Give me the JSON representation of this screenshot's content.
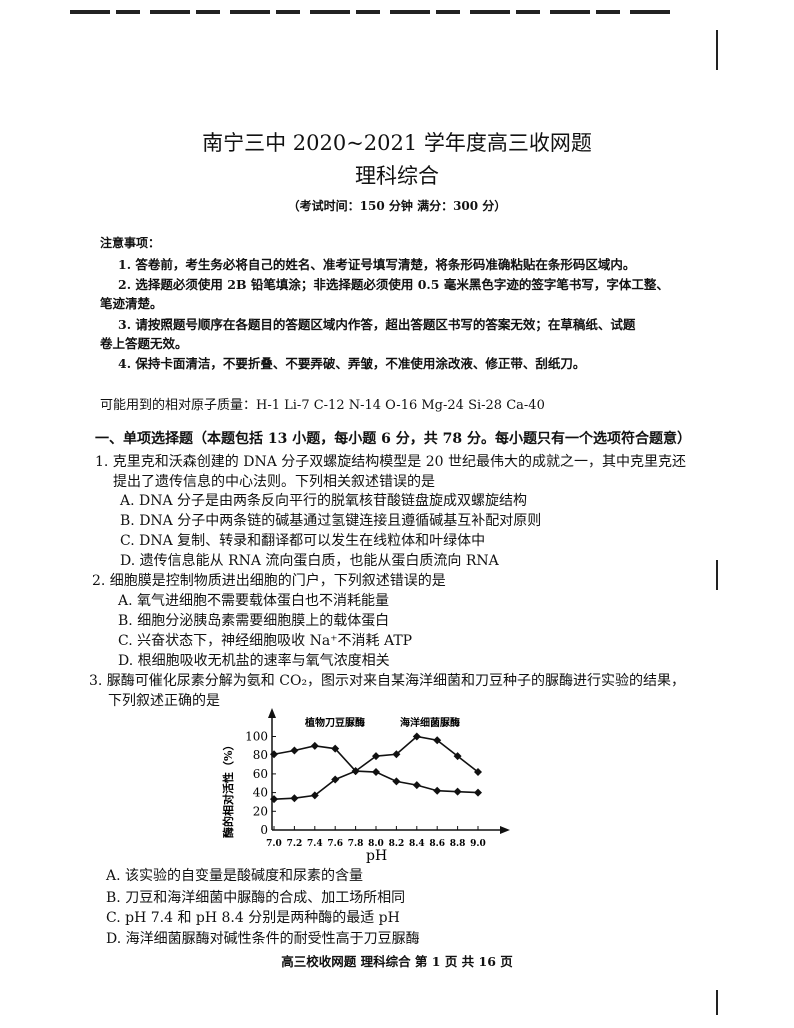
{
  "header": {
    "title": "南宁三中 2020~2021 学年度高三收网题",
    "subject": "理科综合",
    "exam_info": "（考试时间：150 分钟   满分：300 分）"
  },
  "notes": {
    "heading": "注意事项：",
    "items": [
      "1. 答卷前，考生务必将自己的姓名、准考证号填写清楚，将条形码准确粘贴在条形码区域内。",
      "2. 选择题必须使用 2B 铅笔填涂；非选择题必须使用 0.5 毫米黑色字迹的签字笔书写，字体工整、",
      "笔迹清楚。",
      "3. 请按照题号顺序在各题目的答题区域内作答，超出答题区书写的答案无效；在草稿纸、试题",
      "卷上答题无效。",
      "4. 保持卡面清洁，不要折叠、不要弄破、弄皱，不准使用涂改液、修正带、刮纸刀。"
    ]
  },
  "atomic_masses": "可能用到的相对原子质量：H-1   Li-7   C-12   N-14   O-16   Mg-24   Si-28   Ca-40",
  "section": "一、单项选择题（本题包括 13 小题，每小题 6 分，共 78 分。每小题只有一个选项符合题意）",
  "questions": [
    {
      "stem": [
        "1. 克里克和沃森创建的 DNA 分子双螺旋结构模型是 20 世纪最伟大的成就之一，其中克里克还",
        "提出了遗传信息的中心法则。下列相关叙述错误的是"
      ],
      "options": [
        "A. DNA 分子是由两条反向平行的脱氧核苷酸链盘旋成双螺旋结构",
        "B. DNA 分子中两条链的碱基通过氢键连接且遵循碱基互补配对原则",
        "C. DNA 复制、转录和翻译都可以发生在线粒体和叶绿体中",
        "D. 遗传信息能从 RNA 流向蛋白质，也能从蛋白质流向 RNA"
      ]
    },
    {
      "stem": [
        "2. 细胞膜是控制物质进出细胞的门户，下列叙述错误的是"
      ],
      "options": [
        "A. 氧气进细胞不需要载体蛋白也不消耗能量",
        "B. 细胞分泌胰岛素需要细胞膜上的载体蛋白",
        "C. 兴奋状态下，神经细胞吸收 Na⁺不消耗 ATP",
        "D. 根细胞吸收无机盐的速率与氧气浓度相关"
      ]
    },
    {
      "stem": [
        "3. 脲酶可催化尿素分解为氨和 CO₂，图示对来自某海洋细菌和刀豆种子的脲酶进行实验的结果，",
        "下列叙述正确的是"
      ],
      "options": [
        "A. 该实验的自变量是酸碱度和尿素的含量",
        "B. 刀豆和海洋细菌中脲酶的合成、加工场所相同",
        "C. pH 7.4 和 pH 8.4 分别是两种酶的最适 pH",
        "D. 海洋细菌脲酶对碱性条件的耐受性高于刀豆脲酶"
      ]
    }
  ],
  "chart_data": {
    "type": "line",
    "xlabel": "pH",
    "ylabel": "酶的相对活性（%）",
    "x": [
      7.0,
      7.2,
      7.4,
      7.6,
      7.8,
      8.0,
      8.2,
      8.4,
      8.6,
      8.8,
      9.0
    ],
    "x_tick_labels": [
      "7.0",
      "7.2",
      "7.4",
      "7.6",
      "7.8",
      "8.0",
      "8.2",
      "8.4",
      "8.6",
      "8.8",
      "9.0"
    ],
    "y_ticks": [
      "0",
      "20",
      "40",
      "60",
      "80",
      "100"
    ],
    "ylim": [
      0,
      110
    ],
    "grid": false,
    "series": [
      {
        "name": "植物刀豆脲酶",
        "values": [
          81,
          85,
          90,
          87,
          63,
          62,
          52,
          48,
          42,
          41,
          40
        ]
      },
      {
        "name": "海洋细菌脲酶",
        "values": [
          33,
          34,
          37,
          54,
          63,
          79,
          81,
          100,
          96,
          79,
          62
        ]
      }
    ],
    "color": "#111111"
  },
  "footer": "高三校收网题   理科综合   第 1 页   共 16 页"
}
